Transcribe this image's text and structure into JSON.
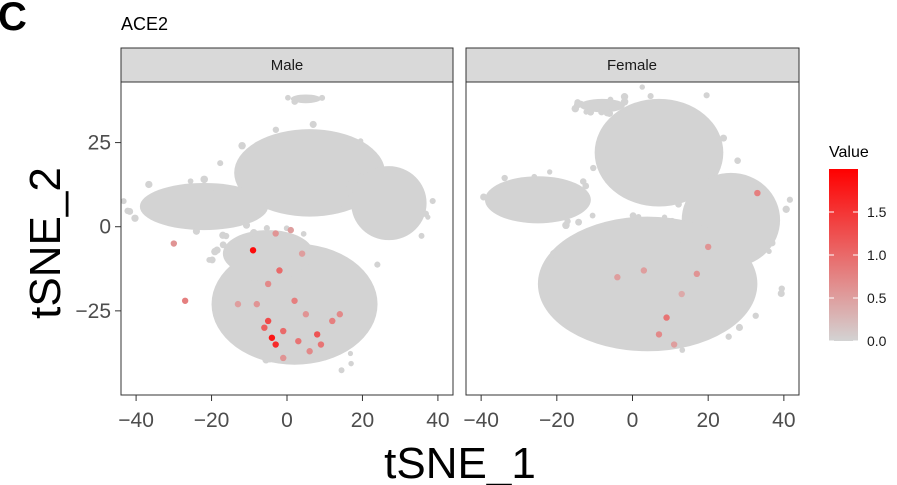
{
  "panel_letter": "C",
  "chart_data": {
    "type": "scatter",
    "title": "ACE2",
    "xlabel": "tSNE_1",
    "ylabel": "tSNE_2",
    "xlim": [
      -44,
      44
    ],
    "ylim": [
      -50,
      43
    ],
    "x_ticks": [
      -40,
      -20,
      0,
      20,
      40
    ],
    "y_ticks": [
      -25,
      0,
      25
    ],
    "x_tick_labels": [
      "−40",
      "−20",
      "0",
      "20",
      "40"
    ],
    "y_tick_labels": [
      "−25",
      "0",
      "25"
    ],
    "grid": false,
    "facets": [
      "Male",
      "Female"
    ],
    "color_scale": {
      "title": "Value",
      "low_color": "#d3d3d3",
      "high_color": "#ff0000",
      "range": [
        0,
        2.0
      ],
      "ticks": [
        0.0,
        0.5,
        1.0,
        1.5
      ],
      "tick_labels": [
        "0.0",
        "0.5",
        "1.0",
        "1.5"
      ]
    },
    "background_color": "#d3d3d3",
    "series": [
      {
        "name": "Male",
        "points": [
          {
            "x": -9,
            "y": -7,
            "value": 1.9
          },
          {
            "x": -3,
            "y": -2,
            "value": 0.6
          },
          {
            "x": -5,
            "y": -17,
            "value": 0.7
          },
          {
            "x": -2,
            "y": -13,
            "value": 1.0
          },
          {
            "x": -5,
            "y": -28,
            "value": 1.3
          },
          {
            "x": -4,
            "y": -33,
            "value": 1.8
          },
          {
            "x": -3,
            "y": -35,
            "value": 1.6
          },
          {
            "x": -6,
            "y": -30,
            "value": 1.1
          },
          {
            "x": -1,
            "y": -31,
            "value": 1.0
          },
          {
            "x": 2,
            "y": -22,
            "value": 0.8
          },
          {
            "x": 5,
            "y": -26,
            "value": 0.6
          },
          {
            "x": 8,
            "y": -32,
            "value": 1.2
          },
          {
            "x": 9,
            "y": -35,
            "value": 0.9
          },
          {
            "x": 12,
            "y": -28,
            "value": 0.8
          },
          {
            "x": 14,
            "y": -26,
            "value": 0.7
          },
          {
            "x": 3,
            "y": -34,
            "value": 0.9
          },
          {
            "x": 6,
            "y": -37,
            "value": 0.7
          },
          {
            "x": -8,
            "y": -23,
            "value": 0.6
          },
          {
            "x": -13,
            "y": -23,
            "value": 0.5
          },
          {
            "x": -27,
            "y": -22,
            "value": 0.8
          },
          {
            "x": -30,
            "y": -5,
            "value": 0.6
          },
          {
            "x": 4,
            "y": -8,
            "value": 0.5
          },
          {
            "x": 1,
            "y": -1,
            "value": 0.5
          },
          {
            "x": -1,
            "y": -39,
            "value": 0.6
          }
        ]
      },
      {
        "name": "Female",
        "points": [
          {
            "x": 33,
            "y": 10,
            "value": 0.8
          },
          {
            "x": 20,
            "y": -6,
            "value": 0.6
          },
          {
            "x": 3,
            "y": -13,
            "value": 0.5
          },
          {
            "x": 9,
            "y": -27,
            "value": 0.9
          },
          {
            "x": 17,
            "y": -14,
            "value": 0.6
          },
          {
            "x": 7,
            "y": -32,
            "value": 0.7
          },
          {
            "x": -4,
            "y": -15,
            "value": 0.5
          },
          {
            "x": 13,
            "y": -20,
            "value": 0.4
          },
          {
            "x": 11,
            "y": -35,
            "value": 0.5
          }
        ]
      }
    ]
  }
}
